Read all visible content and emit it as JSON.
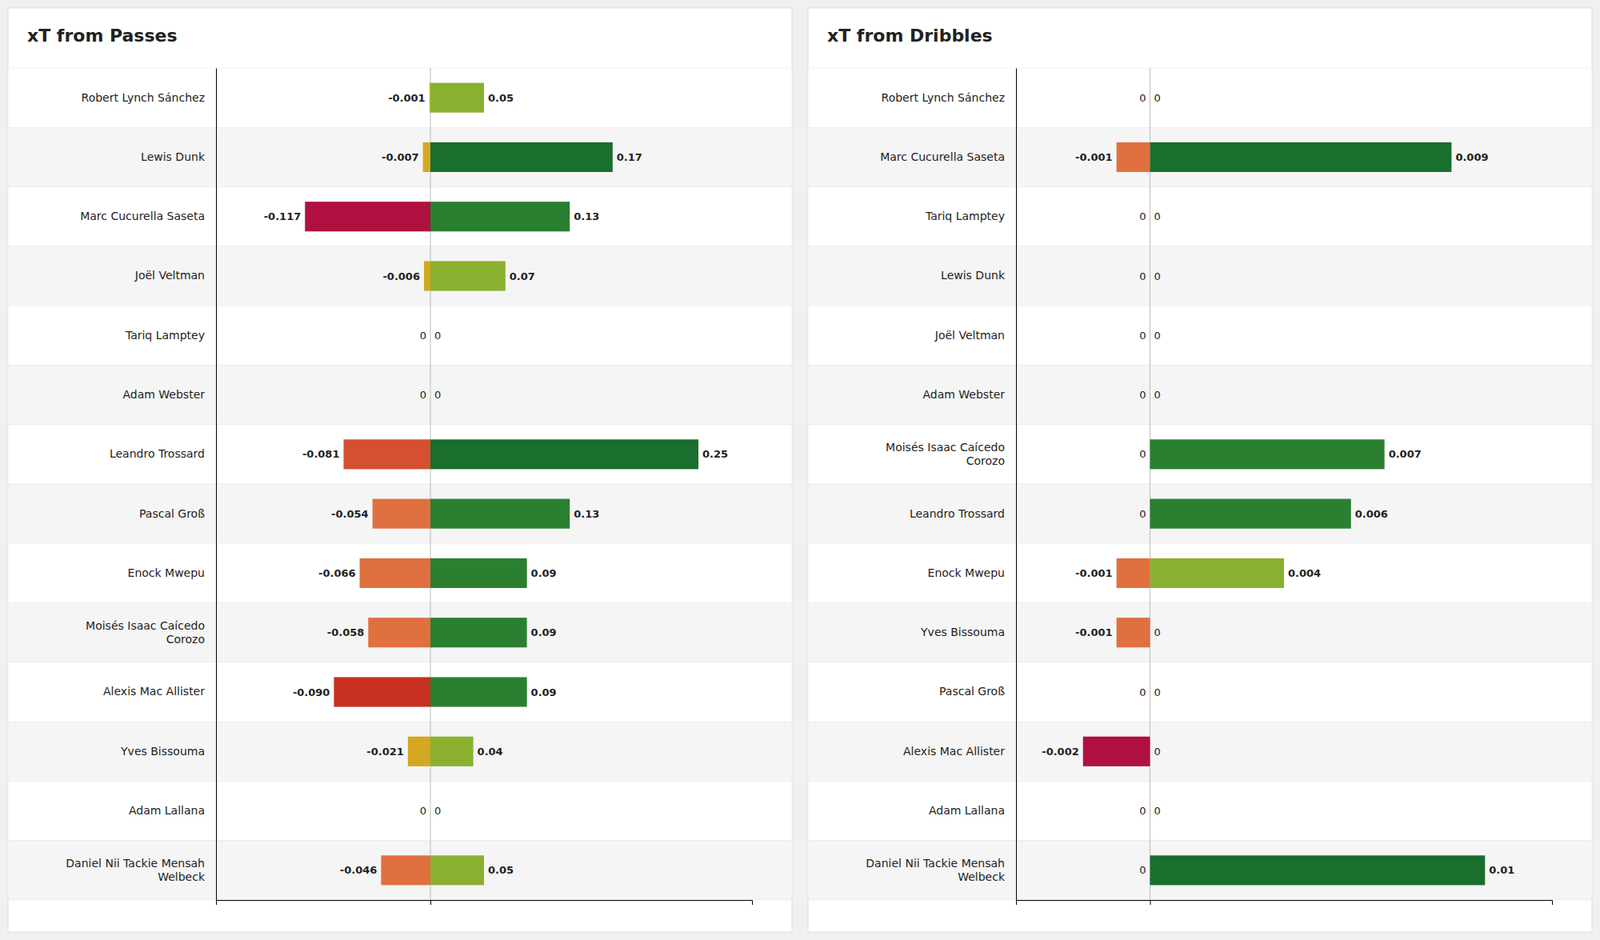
{
  "chart_data": [
    {
      "type": "bar",
      "title": "xT from Passes",
      "orientation": "horizontal",
      "stacked": true,
      "data_labels": true,
      "tick_labels": "y",
      "grid": true,
      "categories": [
        "Robert Lynch Sánchez",
        "Lewis Dunk",
        "Marc Cucurella Saseta",
        "Joël Veltman",
        "Tariq Lamptey",
        "Adam Webster",
        "Leandro Trossard",
        "Pascal Groß",
        "Enock Mwepu",
        "Moisés Isaac Caícedo\nCorozo",
        "Alexis Mac Allister",
        "Yves Bissouma",
        "Adam Lallana",
        "Daniel Nii Tackie Mensah\nWelbeck"
      ],
      "xlim": [
        -0.2,
        0.3
      ],
      "xticks": [
        0
      ],
      "series": [
        {
          "values": [
            -0.001,
            -0.007,
            -0.117,
            -0.006,
            0,
            0,
            -0.081,
            -0.054,
            -0.066,
            -0.058,
            -0.09,
            -0.021,
            0,
            -0.046
          ],
          "value_labels": [
            "-0.001",
            "-0.007",
            "-0.117",
            "-0.006",
            "0",
            "0",
            "-0.081",
            "-0.054",
            "-0.066",
            "-0.058",
            "-0.090",
            "-0.021",
            "0",
            "-0.046"
          ],
          "colors": [
            "#b8c832",
            "#d4a820",
            "#b01040",
            "#d4a820",
            "#d4a820",
            "#d4a820",
            "#d45030",
            "#e07040",
            "#e07040",
            "#e07040",
            "#c83020",
            "#d4a820",
            "#d4a820",
            "#e07040"
          ]
        },
        {
          "values": [
            0.05,
            0.17,
            0.13,
            0.07,
            0,
            0,
            0.25,
            0.13,
            0.09,
            0.09,
            0.09,
            0.04,
            0,
            0.05
          ],
          "value_labels": [
            "0.05",
            "0.17",
            "0.13",
            "0.07",
            "0",
            "0",
            "0.25",
            "0.13",
            "0.09",
            "0.09",
            "0.09",
            "0.04",
            "0",
            "0.05"
          ],
          "colors": [
            "#8ab030",
            "#1a6e2e",
            "#2a7e30",
            "#8ab030",
            "#d4a820",
            "#d4a820",
            "#1a6e2e",
            "#2a8030",
            "#2a8030",
            "#2a8030",
            "#2a8030",
            "#8ab030",
            "#d4a820",
            "#8ab030"
          ]
        }
      ]
    },
    {
      "type": "bar",
      "title": "xT from Dribbles",
      "orientation": "horizontal",
      "stacked": true,
      "data_labels": true,
      "tick_labels": "y",
      "grid": true,
      "categories": [
        "Robert Lynch Sánchez",
        "Marc Cucurella Saseta",
        "Tariq Lamptey",
        "Lewis Dunk",
        "Joël Veltman",
        "Adam Webster",
        "Moisés Isaac Caícedo\nCorozo",
        "Leandro Trossard",
        "Enock Mwepu",
        "Yves Bissouma",
        "Pascal Groß",
        "Alexis Mac Allister",
        "Adam Lallana",
        "Daniel Nii Tackie Mensah\nWelbeck"
      ],
      "xlim": [
        -0.004,
        0.012
      ],
      "xticks": [
        0
      ],
      "series": [
        {
          "values": [
            0,
            -0.001,
            0,
            0,
            0,
            0,
            0,
            0,
            -0.001,
            -0.001,
            0,
            -0.002,
            0,
            0
          ],
          "value_labels": [
            "0",
            "-0.001",
            "0",
            "0",
            "0",
            "0",
            "0",
            "0",
            "-0.001",
            "-0.001",
            "0",
            "-0.002",
            "0",
            "0"
          ],
          "colors": [
            "#d4a820",
            "#e07040",
            "#d4a820",
            "#d4a820",
            "#d4a820",
            "#d4a820",
            "#d4a820",
            "#d4a820",
            "#e07040",
            "#e07040",
            "#d4a820",
            "#b01040",
            "#d4a820",
            "#d4a820"
          ]
        },
        {
          "values": [
            0,
            0.009,
            0,
            0,
            0,
            0,
            0.007,
            0.006,
            0.004,
            0,
            0,
            0,
            0,
            0.01
          ],
          "value_labels": [
            "0",
            "0.009",
            "0",
            "0",
            "0",
            "0",
            "0.007",
            "0.006",
            "0.004",
            "0",
            "0",
            "0",
            "0",
            "0.01"
          ],
          "colors": [
            "#d4a820",
            "#1a6e2e",
            "#d4a820",
            "#d4a820",
            "#d4a820",
            "#d4a820",
            "#2a8030",
            "#2a8030",
            "#8ab030",
            "#d4a820",
            "#d4a820",
            "#d4a820",
            "#d4a820",
            "#1a6e2e"
          ]
        }
      ]
    }
  ]
}
